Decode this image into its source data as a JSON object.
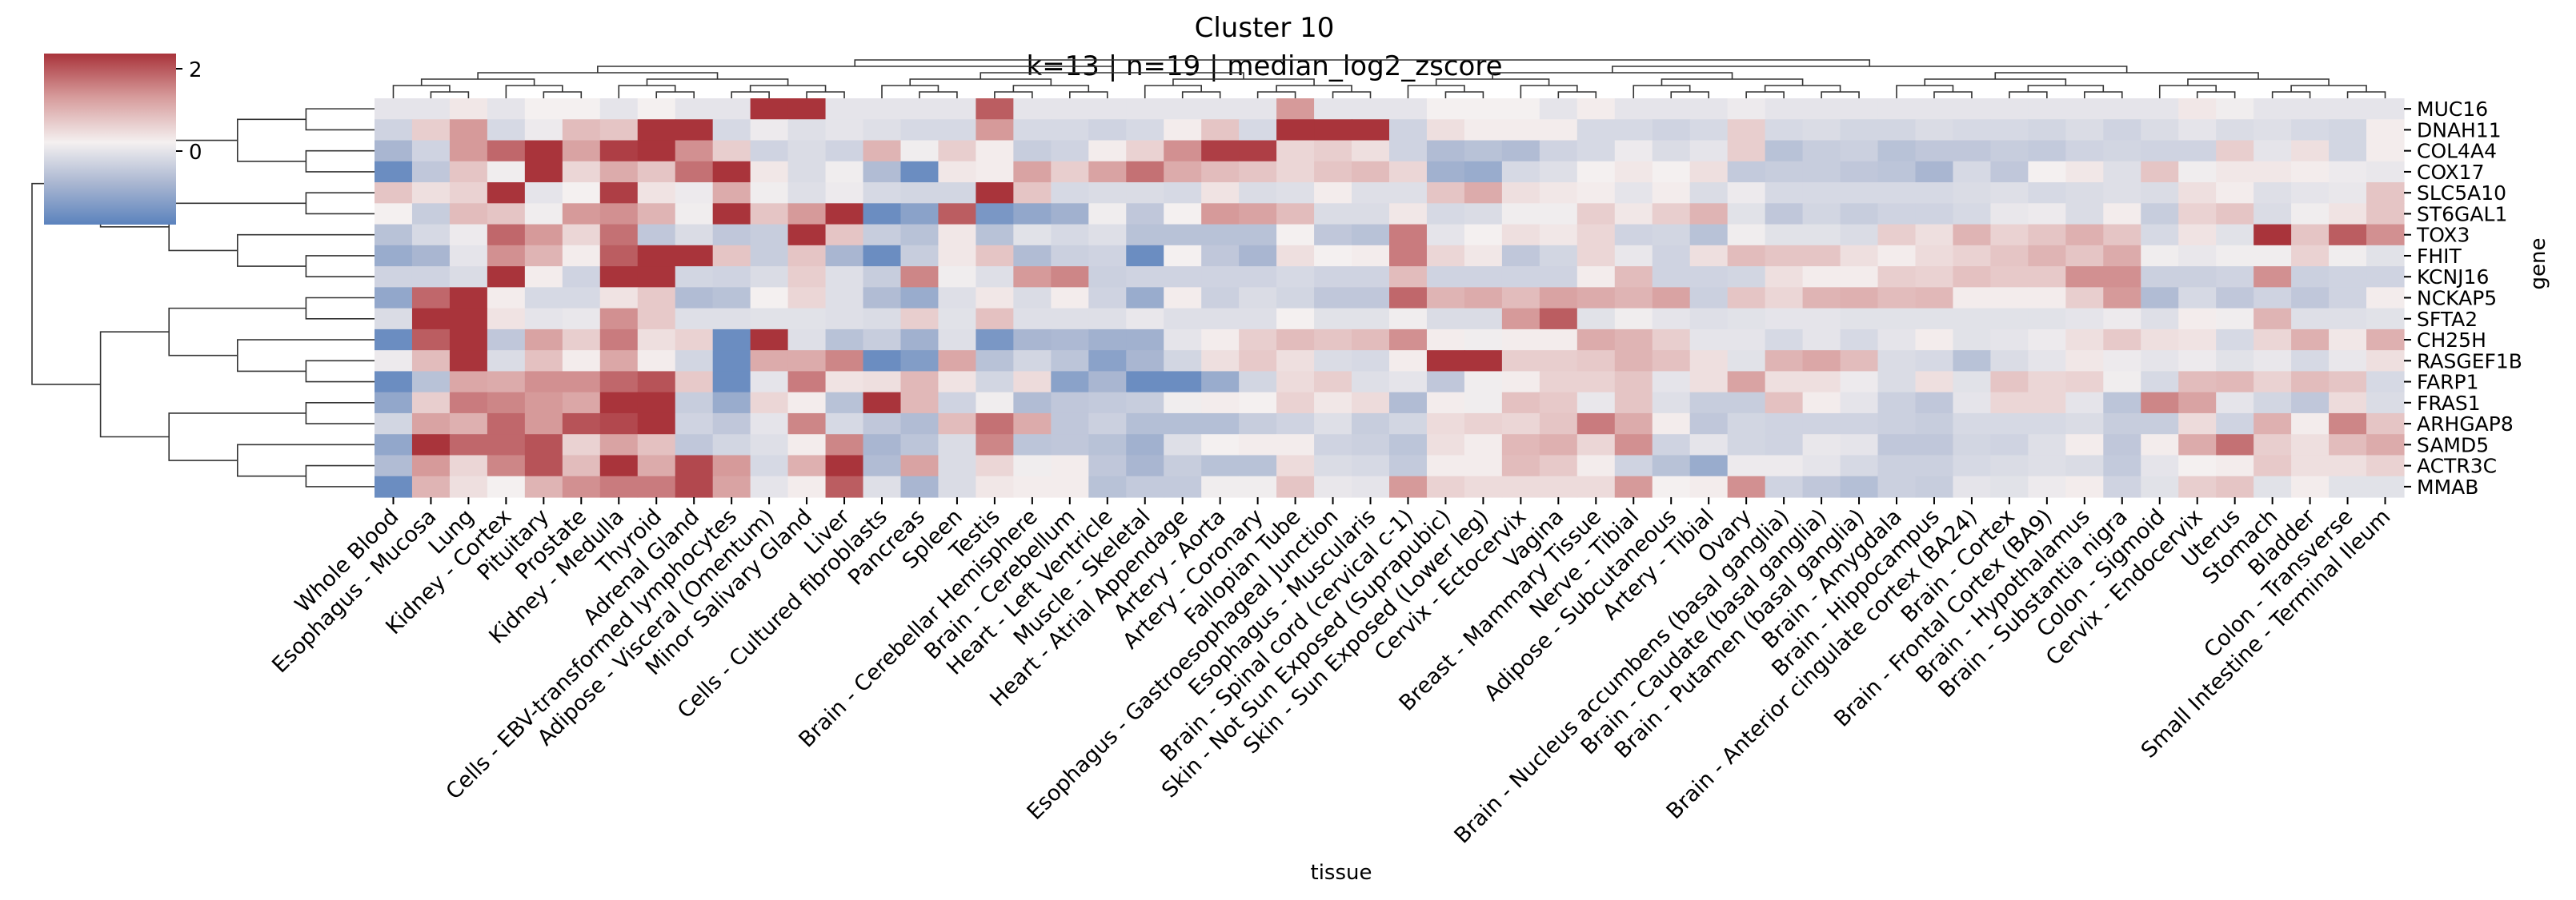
{
  "chart_data": {
    "type": "heatmap",
    "title": "Cluster 10",
    "subtitle": "k=13 | n=19 | median_log2_zscore",
    "xlabel": "tissue",
    "ylabel": "gene",
    "colorbar": {
      "ticks": [
        2,
        0
      ],
      "tick_labels": [
        "2",
        "0"
      ],
      "range": [
        -2,
        2
      ],
      "colors": {
        "low": "#5b83bd",
        "mid": "#f4f0f0",
        "high": "#a9343b"
      }
    },
    "columns": [
      "Whole Blood",
      "Esophagus - Mucosa",
      "Lung",
      "Kidney - Cortex",
      "Pituitary",
      "Prostate",
      "Kidney - Medulla",
      "Thyroid",
      "Adrenal Gland",
      "Cells - EBV-transformed lymphocytes",
      "Adipose - Visceral (Omentum)",
      "Minor Salivary Gland",
      "Liver",
      "Cells - Cultured fibroblasts",
      "Pancreas",
      "Spleen",
      "Testis",
      "Brain - Cerebellar Hemisphere",
      "Brain - Cerebellum",
      "Heart - Left Ventricle",
      "Muscle - Skeletal",
      "Heart - Atrial Appendage",
      "Artery - Aorta",
      "Artery - Coronary",
      "Fallopian Tube",
      "Esophagus - Gastroesophageal Junction",
      "Esophagus - Muscularis",
      "Brain - Spinal cord (cervical c-1)",
      "Skin - Not Sun Exposed (Suprapubic)",
      "Skin - Sun Exposed (Lower leg)",
      "Cervix - Ectocervix",
      "Vagina",
      "Breast - Mammary Tissue",
      "Nerve - Tibial",
      "Adipose - Subcutaneous",
      "Artery - Tibial",
      "Ovary",
      "Brain - Nucleus accumbens (basal ganglia)",
      "Brain - Caudate (basal ganglia)",
      "Brain - Putamen (basal ganglia)",
      "Brain - Amygdala",
      "Brain - Hippocampus",
      "Brain - Anterior cingulate cortex (BA24)",
      "Brain - Cortex",
      "Brain - Frontal Cortex (BA9)",
      "Brain - Hypothalamus",
      "Brain - Substantia nigra",
      "Colon - Sigmoid",
      "Cervix - Endocervix",
      "Uterus",
      "Stomach",
      "Bladder",
      "Colon - Transverse",
      "Small Intestine - Terminal Ileum"
    ],
    "rows": [
      "MUC16",
      "DNAH11",
      "COL4A4",
      "COX17",
      "SLC5A10",
      "ST6GAL1",
      "TOX3",
      "FHIT",
      "KCNJ16",
      "NCKAP5",
      "SFTA2",
      "CH25H",
      "RASGEF1B",
      "FARP1",
      "FRAS1",
      "ARHGAP8",
      "SAMD5",
      "ACTR3C",
      "MMAB"
    ],
    "values": [
      [
        -0.2,
        -0.2,
        0.1,
        -0.2,
        0,
        0,
        -0.2,
        0,
        -0.2,
        -0.2,
        2,
        2,
        -0.2,
        -0.2,
        -0.2,
        -0.2,
        1.6,
        -0.2,
        -0.2,
        -0.2,
        -0.2,
        -0.2,
        -0.2,
        -0.2,
        1.0,
        -0.2,
        -0.2,
        -0.2,
        0,
        0,
        0,
        -0.2,
        0.05,
        -0.2,
        -0.2,
        -0.2,
        -0.1,
        -0.2,
        -0.2,
        -0.2,
        -0.2,
        -0.2,
        -0.2,
        -0.2,
        -0.2,
        -0.2,
        -0.2,
        -0.2,
        0.1,
        -0.05,
        -0.2,
        -0.2,
        -0.2,
        -0.2
      ],
      [
        -0.5,
        0.4,
        1.0,
        -0.4,
        -0.1,
        0.6,
        0.5,
        2,
        2,
        -0.4,
        -0.1,
        -0.3,
        -0.2,
        -0.3,
        -0.4,
        -0.4,
        1.0,
        -0.4,
        -0.4,
        -0.5,
        -0.4,
        0.05,
        0.5,
        -0.4,
        2,
        2,
        2,
        -0.5,
        0.2,
        0.05,
        0.05,
        0.05,
        -0.4,
        -0.4,
        -0.5,
        -0.4,
        0.4,
        -0.4,
        -0.35,
        -0.45,
        -0.45,
        -0.35,
        -0.4,
        -0.4,
        -0.45,
        -0.35,
        -0.5,
        -0.35,
        -0.2,
        -0.35,
        -0.3,
        -0.4,
        -0.45,
        0.05
      ],
      [
        -1.0,
        -0.5,
        1.0,
        1.5,
        2,
        0.9,
        1.9,
        2,
        1.1,
        0.4,
        -0.5,
        -0.35,
        -0.5,
        0.7,
        -0.05,
        0.4,
        0.05,
        -0.6,
        -0.5,
        0.05,
        0.35,
        1.1,
        1.9,
        1.9,
        0.3,
        0.4,
        0.2,
        -0.5,
        -0.9,
        -0.8,
        -0.9,
        -0.5,
        -0.4,
        -0.1,
        -0.35,
        -0.2,
        0.4,
        -0.8,
        -0.6,
        -0.55,
        -0.8,
        -0.7,
        -0.7,
        -0.6,
        -0.65,
        -0.5,
        -0.45,
        -0.5,
        -0.5,
        0.4,
        -0.2,
        0.2,
        -0.45,
        0.05
      ],
      [
        -1.8,
        -0.7,
        0.5,
        -0.05,
        2,
        0.3,
        0.8,
        0.5,
        1.4,
        2,
        0.1,
        -0.35,
        -0.05,
        -0.9,
        -1.8,
        0.1,
        0.05,
        0.9,
        0.4,
        0.9,
        1.4,
        0.8,
        0.6,
        0.5,
        0.3,
        0.5,
        0.6,
        0.3,
        -1.1,
        -1.2,
        -0.4,
        -0.3,
        0,
        0.1,
        0,
        0.2,
        -0.65,
        -0.6,
        -0.6,
        -0.7,
        -0.75,
        -1.0,
        -0.4,
        -0.7,
        0,
        0.1,
        -0.3,
        0.5,
        -0.05,
        0.1,
        0.1,
        0.05,
        -0.1,
        -0.15
      ],
      [
        0.5,
        0.2,
        0.35,
        2,
        -0.2,
        0,
        1.9,
        0.15,
        -0.1,
        0.8,
        -0.05,
        -0.3,
        -0.1,
        -0.4,
        -0.45,
        -0.45,
        2,
        0.5,
        -0.4,
        -0.35,
        -0.35,
        -0.4,
        0.15,
        -0.35,
        -0.3,
        0.05,
        -0.3,
        -0.3,
        0.5,
        0.8,
        0.2,
        0.1,
        0.05,
        -0.2,
        0.05,
        -0.35,
        -0.1,
        -0.4,
        -0.4,
        -0.4,
        -0.4,
        -0.4,
        -0.35,
        -0.3,
        -0.4,
        -0.35,
        -0.3,
        -0.35,
        0.2,
        0.05,
        -0.3,
        -0.2,
        -0.15,
        0.5
      ],
      [
        0,
        -0.6,
        0.6,
        0.5,
        -0.05,
        1.0,
        1.1,
        0.7,
        -0.05,
        2,
        0.5,
        1.0,
        2,
        -1.8,
        -1.4,
        1.6,
        -1.6,
        -1.3,
        -1.1,
        -0.05,
        -0.7,
        0,
        1.0,
        0.9,
        0.6,
        -0.35,
        -0.35,
        0.1,
        -0.4,
        -0.35,
        -0.05,
        -0.05,
        0.4,
        0.1,
        0.4,
        0.7,
        -0.25,
        -0.7,
        -0.45,
        -0.6,
        -0.5,
        -0.5,
        -0.4,
        -0.15,
        -0.1,
        -0.35,
        0.05,
        -0.6,
        0.35,
        0.5,
        -0.35,
        -0.05,
        0.15,
        0.5
      ],
      [
        -0.8,
        -0.4,
        -0.1,
        1.5,
        1.0,
        0.3,
        1.4,
        -0.7,
        -0.35,
        -0.7,
        -0.6,
        2,
        0.5,
        -0.6,
        -0.8,
        0.1,
        -0.8,
        -0.25,
        -0.4,
        -0.3,
        -0.8,
        -0.8,
        -0.8,
        -0.8,
        0,
        -0.7,
        -0.8,
        1.3,
        -0.2,
        0,
        0.2,
        0.1,
        0.3,
        -0.5,
        -0.45,
        -0.8,
        -0.05,
        -0.25,
        -0.25,
        -0.35,
        0.4,
        0.2,
        0.7,
        0.35,
        0.5,
        0.75,
        0.5,
        -0.4,
        0.15,
        -0.25,
        2,
        0.5,
        1.6,
        1.1
      ],
      [
        -1.2,
        -1.0,
        -0.2,
        1.1,
        0.7,
        0.05,
        1.6,
        2,
        2,
        0.5,
        -0.6,
        0.5,
        -1.0,
        -1.8,
        -0.6,
        0.1,
        0.5,
        -0.9,
        -0.55,
        -0.5,
        -1.8,
        0,
        -0.7,
        -1.0,
        0.2,
        0,
        0.05,
        1.3,
        0.3,
        0.1,
        -0.7,
        -0.45,
        0.3,
        -0.15,
        -0.5,
        0.2,
        0.6,
        0.5,
        0.5,
        0.2,
        0.05,
        0.25,
        0.35,
        0.5,
        0.7,
        0.5,
        0.8,
        -0.05,
        -0.15,
        -0.05,
        -0.05,
        0.35,
        -0.05,
        -0.25
      ],
      [
        -0.5,
        -0.5,
        -0.35,
        2,
        0.05,
        -0.5,
        2,
        2,
        -0.45,
        -0.5,
        -0.35,
        0.4,
        -0.3,
        -0.6,
        1.2,
        -0.05,
        -0.3,
        1.0,
        1.2,
        -0.55,
        -0.5,
        -0.5,
        -0.5,
        -0.5,
        -0.4,
        -0.5,
        -0.5,
        0.6,
        -0.5,
        -0.5,
        -0.5,
        -0.5,
        0.05,
        0.6,
        -0.5,
        -0.5,
        -0.45,
        0.2,
        0.05,
        0.05,
        0.4,
        0.35,
        0.55,
        0.45,
        0.45,
        1.1,
        1.1,
        -0.55,
        -0.55,
        -0.5,
        1.1,
        -0.55,
        -0.5,
        -0.5
      ],
      [
        -1.3,
        1.5,
        2,
        0.05,
        -0.4,
        -0.4,
        0.15,
        0.45,
        -0.9,
        -0.8,
        0,
        0.3,
        -0.3,
        -0.9,
        -1.2,
        -0.3,
        0.1,
        -0.35,
        0.05,
        -0.5,
        -1.2,
        0.05,
        -0.55,
        -0.35,
        -0.45,
        -0.7,
        -0.7,
        1.5,
        0.7,
        0.8,
        0.6,
        0.9,
        0.8,
        0.7,
        0.9,
        -0.55,
        0.5,
        0.3,
        0.7,
        0.75,
        0.6,
        0.65,
        0.05,
        0.05,
        0.05,
        0.4,
        1.0,
        -0.9,
        -0.4,
        -0.7,
        -0.5,
        -0.7,
        -0.5,
        0.05
      ],
      [
        -0.35,
        2,
        2,
        0.15,
        -0.2,
        -0.15,
        1.1,
        0.45,
        -0.3,
        -0.3,
        -0.25,
        -0.25,
        -0.3,
        -0.35,
        0.4,
        -0.25,
        0.55,
        -0.3,
        -0.3,
        -0.3,
        -0.15,
        -0.3,
        -0.3,
        -0.3,
        0,
        -0.25,
        -0.25,
        -0.05,
        -0.35,
        -0.35,
        1.0,
        1.6,
        -0.25,
        -0.05,
        -0.2,
        -0.3,
        -0.25,
        -0.2,
        -0.2,
        -0.25,
        -0.25,
        -0.25,
        -0.25,
        -0.25,
        -0.25,
        -0.2,
        -0.1,
        -0.3,
        0.05,
        -0.05,
        0.7,
        -0.3,
        -0.3,
        -0.25
      ],
      [
        -1.8,
        1.6,
        2,
        -0.7,
        0.9,
        0.4,
        1.3,
        0.2,
        0.35,
        -1.8,
        2,
        -0.3,
        -0.8,
        -0.6,
        -1.1,
        -0.3,
        -1.6,
        -1.0,
        -0.95,
        -1.1,
        -1.1,
        -0.2,
        0.05,
        0.4,
        0.6,
        0.5,
        0.6,
        1.1,
        0.05,
        -0.05,
        0.05,
        0.05,
        0.8,
        0.7,
        0.4,
        -0.2,
        -0.2,
        -0.4,
        -0.2,
        -0.4,
        -0.2,
        0.05,
        -0.25,
        -0.2,
        -0.1,
        0.2,
        0.45,
        0.2,
        0.15,
        -0.4,
        0.3,
        0.75,
        0.1,
        0.75
      ],
      [
        -0.1,
        0.6,
        2,
        -0.35,
        0.55,
        0.05,
        0.85,
        0.05,
        -0.45,
        -1.8,
        0.8,
        0.8,
        1.2,
        -1.8,
        -1.5,
        0.85,
        -0.8,
        -0.45,
        -0.75,
        -1.4,
        -1.0,
        -0.45,
        0.2,
        0.45,
        0.2,
        -0.35,
        -0.4,
        0.05,
        2,
        2,
        0.4,
        0.4,
        0.45,
        0.7,
        0.55,
        0.2,
        -0.25,
        0.7,
        0.85,
        0.6,
        -0.35,
        -0.4,
        -0.8,
        -0.35,
        -0.2,
        0.1,
        -0.1,
        -0.2,
        -0.1,
        -0.25,
        -0.15,
        -0.4,
        -0.15,
        0.2
      ],
      [
        -1.8,
        -0.8,
        0.85,
        0.8,
        1.1,
        1.1,
        1.5,
        1.7,
        0.45,
        -1.8,
        -0.2,
        1.3,
        0.15,
        0.2,
        0.65,
        0.15,
        -0.45,
        0.25,
        -1.4,
        -1.0,
        -1.8,
        -1.8,
        -1.2,
        -0.45,
        0.25,
        0.4,
        -0.3,
        -0.2,
        -0.7,
        -0.05,
        0.05,
        0.35,
        0.35,
        0.5,
        -0.2,
        0.2,
        0.9,
        0.2,
        0.2,
        -0.1,
        -0.35,
        0.2,
        -0.25,
        0.5,
        0.3,
        0.35,
        -0.05,
        -0.4,
        0.6,
        0.65,
        0.35,
        0.6,
        0.5,
        -0.4
      ],
      [
        -1.3,
        0.4,
        1.3,
        1.2,
        1.0,
        0.85,
        2,
        2,
        -0.6,
        -1.2,
        0.3,
        0.05,
        -0.8,
        2,
        0.65,
        -0.5,
        -0.05,
        -0.9,
        -0.7,
        -0.65,
        -0.6,
        -0.05,
        0.05,
        0,
        0.35,
        0.1,
        0.25,
        -0.9,
        0.05,
        -0.05,
        0.55,
        0.45,
        -0.15,
        0.5,
        -0.3,
        -0.6,
        -0.6,
        0.55,
        0.05,
        -0.2,
        -0.55,
        -0.7,
        -0.2,
        0.3,
        0.3,
        -0.2,
        -0.75,
        1.2,
        0.9,
        -0.2,
        -0.45,
        -0.7,
        0.25,
        -0.35
      ],
      [
        -0.45,
        0.9,
        0.75,
        1.5,
        1.0,
        1.7,
        1.8,
        2,
        -0.5,
        -0.7,
        -0.2,
        1.2,
        -0.4,
        -0.7,
        -0.9,
        0.6,
        1.4,
        0.8,
        -0.7,
        -0.55,
        -0.85,
        -0.85,
        -0.85,
        -0.6,
        -0.5,
        -0.3,
        -0.6,
        -0.45,
        0.25,
        0.35,
        0.3,
        0.5,
        1.3,
        0.8,
        0.05,
        -0.7,
        -0.45,
        -0.5,
        -0.5,
        -0.5,
        -0.55,
        -0.6,
        -0.4,
        -0.4,
        -0.4,
        -0.35,
        -0.6,
        -0.6,
        0.25,
        -0.5,
        0.75,
        0.05,
        1.2,
        0.5
      ],
      [
        -1.3,
        2,
        1.5,
        1.5,
        1.7,
        0.35,
        0.9,
        0.55,
        -0.7,
        -0.45,
        -0.3,
        0.05,
        1.2,
        -1.0,
        -0.75,
        -0.35,
        1.2,
        -0.75,
        -0.7,
        -0.8,
        -1.1,
        -0.3,
        0,
        0.05,
        0.05,
        -0.5,
        -0.55,
        -0.75,
        0.2,
        0.05,
        0.65,
        0.75,
        0.3,
        1.1,
        -0.5,
        -0.2,
        -0.45,
        -0.5,
        -0.15,
        -0.2,
        -0.7,
        -0.7,
        -0.45,
        -0.5,
        -0.3,
        0.05,
        -0.7,
        0.05,
        0.8,
        1.4,
        0.4,
        0.2,
        0.6,
        0.8
      ],
      [
        -0.9,
        1.0,
        0.3,
        1.2,
        1.7,
        0.6,
        2,
        0.8,
        1.8,
        1.0,
        -0.4,
        0.75,
        2,
        -0.9,
        0.9,
        -0.35,
        0.3,
        -0.05,
        0.05,
        -0.7,
        -1.0,
        -0.6,
        -0.8,
        -0.8,
        0.25,
        -0.35,
        -0.4,
        -0.65,
        0.05,
        0.05,
        0.6,
        0.45,
        0.05,
        -0.5,
        -0.8,
        -1.2,
        -0.1,
        -0.1,
        -0.2,
        -0.4,
        -0.55,
        -0.55,
        -0.4,
        -0.35,
        -0.3,
        -0.35,
        -0.65,
        -0.2,
        0,
        0.05,
        0.45,
        0.2,
        0.2,
        0.35
      ],
      [
        -1.8,
        0.7,
        0.2,
        0,
        0.7,
        1.1,
        1.3,
        1.3,
        1.8,
        0.9,
        -0.2,
        0.05,
        1.6,
        -0.3,
        -1.0,
        -0.35,
        0.1,
        0.05,
        0.05,
        -0.8,
        -0.65,
        -0.65,
        -0.05,
        -0.05,
        0.5,
        -0.15,
        -0.2,
        1.0,
        0.35,
        0.25,
        0.25,
        0.25,
        0.25,
        1.0,
        0,
        0.05,
        1.1,
        -0.5,
        -0.7,
        -0.85,
        -0.55,
        -0.6,
        -0.2,
        -0.25,
        -0.1,
        0.05,
        -0.5,
        -0.25,
        0.4,
        0.5,
        -0.25,
        0.05,
        -0.25,
        -0.25
      ]
    ]
  }
}
